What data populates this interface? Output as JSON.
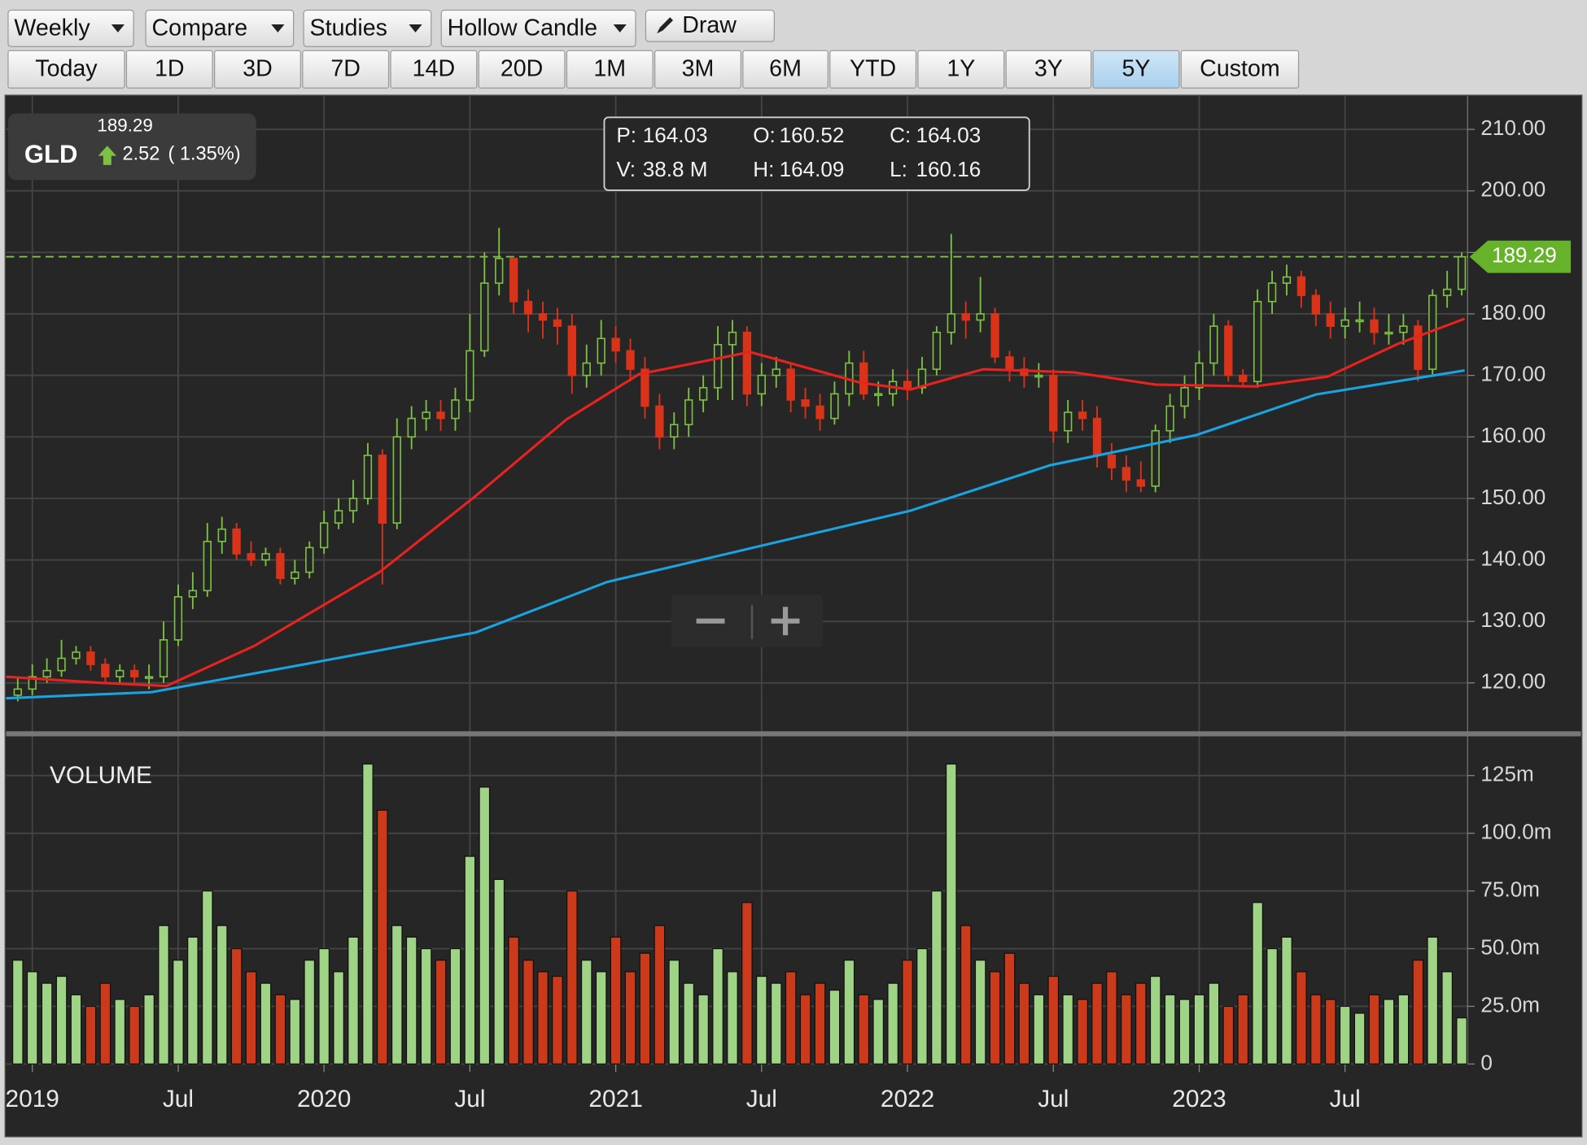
{
  "toolbar": {
    "dropdowns": [
      "Weekly",
      "Compare",
      "Studies",
      "Hollow Candle"
    ],
    "draw": "Draw",
    "ranges": [
      "Today",
      "1D",
      "3D",
      "7D",
      "14D",
      "20D",
      "1M",
      "3M",
      "6M",
      "YTD",
      "1Y",
      "3Y",
      "5Y",
      "Custom"
    ],
    "active_range": 12
  },
  "chart_data": {
    "type": "candlestick",
    "symbol": "GLD",
    "price": 189.29,
    "change": 2.52,
    "change_pct": {
      "value": 1.35,
      "label": "( 1.35%)"
    },
    "info": [
      {
        "label": "P:",
        "value": 164.03
      },
      {
        "label": "O:",
        "value": 160.52
      },
      {
        "label": "C:",
        "value": 164.03
      },
      {
        "label": "V:",
        "value": {
          "value": 38.8,
          "label": "38.8 M"
        }
      },
      {
        "label": "H:",
        "value": 164.09
      },
      {
        "label": "L:",
        "value": 160.16
      }
    ],
    "last_price": 189.29,
    "up_color": "#7cc143",
    "down_color": "#d9341a",
    "grid": true,
    "xlim": [
      2018.91,
      2023.92
    ],
    "xticks": [
      2019,
      {
        "value": 2019.5,
        "label": "Jul"
      },
      2020,
      {
        "value": 2020.5,
        "label": "Jul"
      },
      2021,
      {
        "value": 2021.5,
        "label": "Jul"
      },
      2022,
      {
        "value": 2022.5,
        "label": "Jul"
      },
      2023,
      {
        "value": 2023.5,
        "label": "Jul"
      }
    ],
    "ylim": [
      112.3,
      215.4
    ],
    "yticks": [
      {
        "value": 120,
        "label": "120.00"
      },
      {
        "value": 130,
        "label": "130.00"
      },
      {
        "value": 140,
        "label": "140.00"
      },
      {
        "value": 150,
        "label": "150.00"
      },
      {
        "value": 160,
        "label": "160.00"
      },
      {
        "value": 170,
        "label": "170.00"
      },
      {
        "value": 180,
        "label": "180.00"
      },
      {
        "value": 190,
        "label": "190.00"
      },
      {
        "value": 200,
        "label": "200.00"
      },
      {
        "value": 210,
        "label": "210.00"
      }
    ],
    "x": [
      2018.95,
      2019.0,
      2019.05,
      2019.1,
      2019.15,
      2019.2,
      2019.25,
      2019.3,
      2019.35,
      2019.4,
      2019.45,
      2019.5,
      2019.55,
      2019.6,
      2019.65,
      2019.7,
      2019.75,
      2019.8,
      2019.85,
      2019.9,
      2019.95,
      2020.0,
      2020.05,
      2020.1,
      2020.15,
      2020.2,
      2020.25,
      2020.3,
      2020.35,
      2020.4,
      2020.45,
      2020.5,
      2020.55,
      2020.6,
      2020.65,
      2020.7,
      2020.75,
      2020.8,
      2020.85,
      2020.9,
      2020.95,
      2021.0,
      2021.05,
      2021.1,
      2021.15,
      2021.2,
      2021.25,
      2021.3,
      2021.35,
      2021.4,
      2021.45,
      2021.5,
      2021.55,
      2021.6,
      2021.65,
      2021.7,
      2021.75,
      2021.8,
      2021.85,
      2021.9,
      2021.95,
      2022.0,
      2022.05,
      2022.1,
      2022.15,
      2022.2,
      2022.25,
      2022.3,
      2022.35,
      2022.4,
      2022.45,
      2022.5,
      2022.55,
      2022.6,
      2022.65,
      2022.7,
      2022.75,
      2022.8,
      2022.85,
      2022.9,
      2022.95,
      2023.0,
      2023.05,
      2023.1,
      2023.15,
      2023.2,
      2023.25,
      2023.3,
      2023.35,
      2023.4,
      2023.45,
      2023.5,
      2023.55,
      2023.6,
      2023.65,
      2023.7,
      2023.75,
      2023.8,
      2023.85,
      2023.9
    ],
    "open": [
      118,
      119,
      121,
      122,
      124,
      125,
      123,
      121,
      122,
      121,
      121,
      127,
      134,
      135,
      143,
      145,
      141,
      140,
      141,
      137,
      138,
      142,
      146,
      148,
      150,
      157,
      146,
      160,
      163,
      164,
      163,
      166,
      174,
      185,
      189,
      182,
      180,
      179,
      178,
      170,
      172,
      176,
      174,
      171,
      165,
      160,
      162,
      166,
      168,
      175,
      177,
      167,
      170,
      171,
      166,
      165,
      163,
      167,
      172,
      167,
      167,
      169,
      168,
      171,
      177,
      180,
      179,
      180,
      173,
      171,
      170,
      170,
      161,
      164,
      163,
      157,
      155,
      153,
      152,
      161,
      165,
      168,
      172,
      178,
      170,
      169,
      182,
      185,
      186,
      183,
      180,
      178,
      179,
      179,
      177,
      177,
      178,
      171,
      183,
      184
    ],
    "high": [
      121,
      123,
      124,
      127,
      126,
      126,
      124,
      123,
      123,
      123,
      130,
      136,
      138,
      146,
      147,
      146,
      143,
      142,
      142,
      140,
      143,
      148,
      150,
      153,
      159,
      158,
      163,
      165,
      166,
      166,
      168,
      180,
      190,
      194,
      189,
      184,
      182,
      181,
      180,
      175,
      179,
      178,
      176,
      173,
      167,
      164,
      168,
      170,
      178,
      179,
      178,
      172,
      173,
      172,
      168,
      167,
      169,
      174,
      174,
      169,
      171,
      171,
      173,
      178,
      193,
      182,
      186,
      181,
      174,
      173,
      172,
      171,
      166,
      166,
      165,
      159,
      157,
      156,
      162,
      167,
      170,
      174,
      180,
      179,
      171,
      184,
      187,
      188,
      187,
      184,
      182,
      181,
      182,
      181,
      180,
      180,
      179,
      184,
      187,
      190
    ],
    "low": [
      117,
      118,
      120,
      121,
      123,
      122,
      120,
      120,
      120,
      119,
      120,
      126,
      132,
      134,
      141,
      140,
      139,
      139,
      136,
      136,
      137,
      141,
      145,
      146,
      149,
      136,
      145,
      158,
      161,
      161,
      161,
      164,
      173,
      183,
      180,
      177,
      176,
      175,
      167,
      168,
      170,
      172,
      169,
      163,
      158,
      158,
      160,
      164,
      166,
      166,
      165,
      165,
      168,
      164,
      163,
      161,
      162,
      165,
      166,
      165,
      165,
      166,
      167,
      170,
      175,
      176,
      177,
      172,
      169,
      168,
      168,
      159,
      159,
      161,
      155,
      153,
      151,
      151,
      151,
      159,
      163,
      166,
      170,
      169,
      168,
      168,
      180,
      183,
      181,
      178,
      176,
      176,
      177,
      175,
      175,
      175,
      169,
      170,
      181,
      183
    ],
    "close": [
      119,
      121,
      122,
      124,
      125,
      123,
      121,
      122,
      121,
      121,
      127,
      134,
      135,
      143,
      145,
      141,
      140,
      141,
      137,
      138,
      142,
      146,
      148,
      150,
      157,
      146,
      160,
      163,
      164,
      163,
      166,
      174,
      185,
      189,
      182,
      180,
      179,
      178,
      170,
      172,
      176,
      174,
      171,
      165,
      160,
      162,
      166,
      168,
      175,
      177,
      167,
      170,
      171,
      166,
      165,
      163,
      167,
      172,
      167,
      167,
      169,
      168,
      171,
      177,
      180,
      179,
      180,
      173,
      171,
      170,
      170,
      161,
      164,
      163,
      157,
      155,
      153,
      152,
      161,
      165,
      168,
      172,
      178,
      170,
      169,
      182,
      185,
      186,
      183,
      180,
      178,
      179,
      179,
      177,
      177,
      178,
      171,
      183,
      184,
      189.29
    ],
    "overlays": [
      {
        "color": "#e8231f",
        "x": [
          2018.91,
          2019.24,
          2019.46,
          2019.76,
          2020.19,
          2020.52,
          2020.83,
          2021.08,
          2021.46,
          2021.84,
          2022.01,
          2022.26,
          2022.57,
          2022.85,
          2023.19,
          2023.44,
          2023.68,
          2023.91
        ],
        "values": [
          121,
          120,
          119.5,
          126,
          138,
          150.4,
          162.8,
          170.2,
          173.8,
          168.8,
          167.7,
          171,
          170.5,
          168.5,
          168.2,
          169.8,
          175.1,
          179.2
        ]
      },
      {
        "color": "#1aa3e0",
        "x": [
          2018.91,
          2019.41,
          2019.93,
          2020.52,
          2020.97,
          2021.49,
          2022.01,
          2022.49,
          2022.99,
          2023.4,
          2023.91
        ],
        "values": [
          117.5,
          118.5,
          123,
          128.2,
          136.4,
          142.2,
          148,
          155.4,
          160.3,
          166.9,
          170.8
        ]
      }
    ],
    "volume_title": "VOLUME",
    "volume": [
      45,
      40,
      35,
      38,
      30,
      25,
      35,
      28,
      25,
      30,
      60,
      45,
      55,
      75,
      60,
      50,
      40,
      35,
      30,
      28,
      45,
      50,
      40,
      55,
      130,
      110,
      60,
      55,
      50,
      45,
      50,
      90,
      120,
      80,
      55,
      45,
      40,
      38,
      75,
      45,
      40,
      55,
      40,
      48,
      60,
      45,
      35,
      30,
      50,
      40,
      70,
      38,
      35,
      40,
      30,
      35,
      32,
      45,
      30,
      28,
      35,
      45,
      50,
      75,
      130,
      60,
      45,
      40,
      48,
      35,
      30,
      38,
      30,
      28,
      35,
      40,
      30,
      35,
      38,
      30,
      28,
      30,
      35,
      25,
      30,
      70,
      50,
      55,
      40,
      30,
      28,
      25,
      22,
      30,
      28,
      30,
      45,
      55,
      40,
      20
    ],
    "volume_ylim": [
      0,
      142
    ],
    "volume_yticks": [
      0,
      {
        "value": 25,
        "label": "25.0m"
      },
      {
        "value": 50,
        "label": "50.0m"
      },
      {
        "value": 75,
        "label": "75.0m"
      },
      {
        "value": 100,
        "label": "100.0m"
      },
      {
        "value": 125,
        "label": "125m"
      }
    ]
  }
}
